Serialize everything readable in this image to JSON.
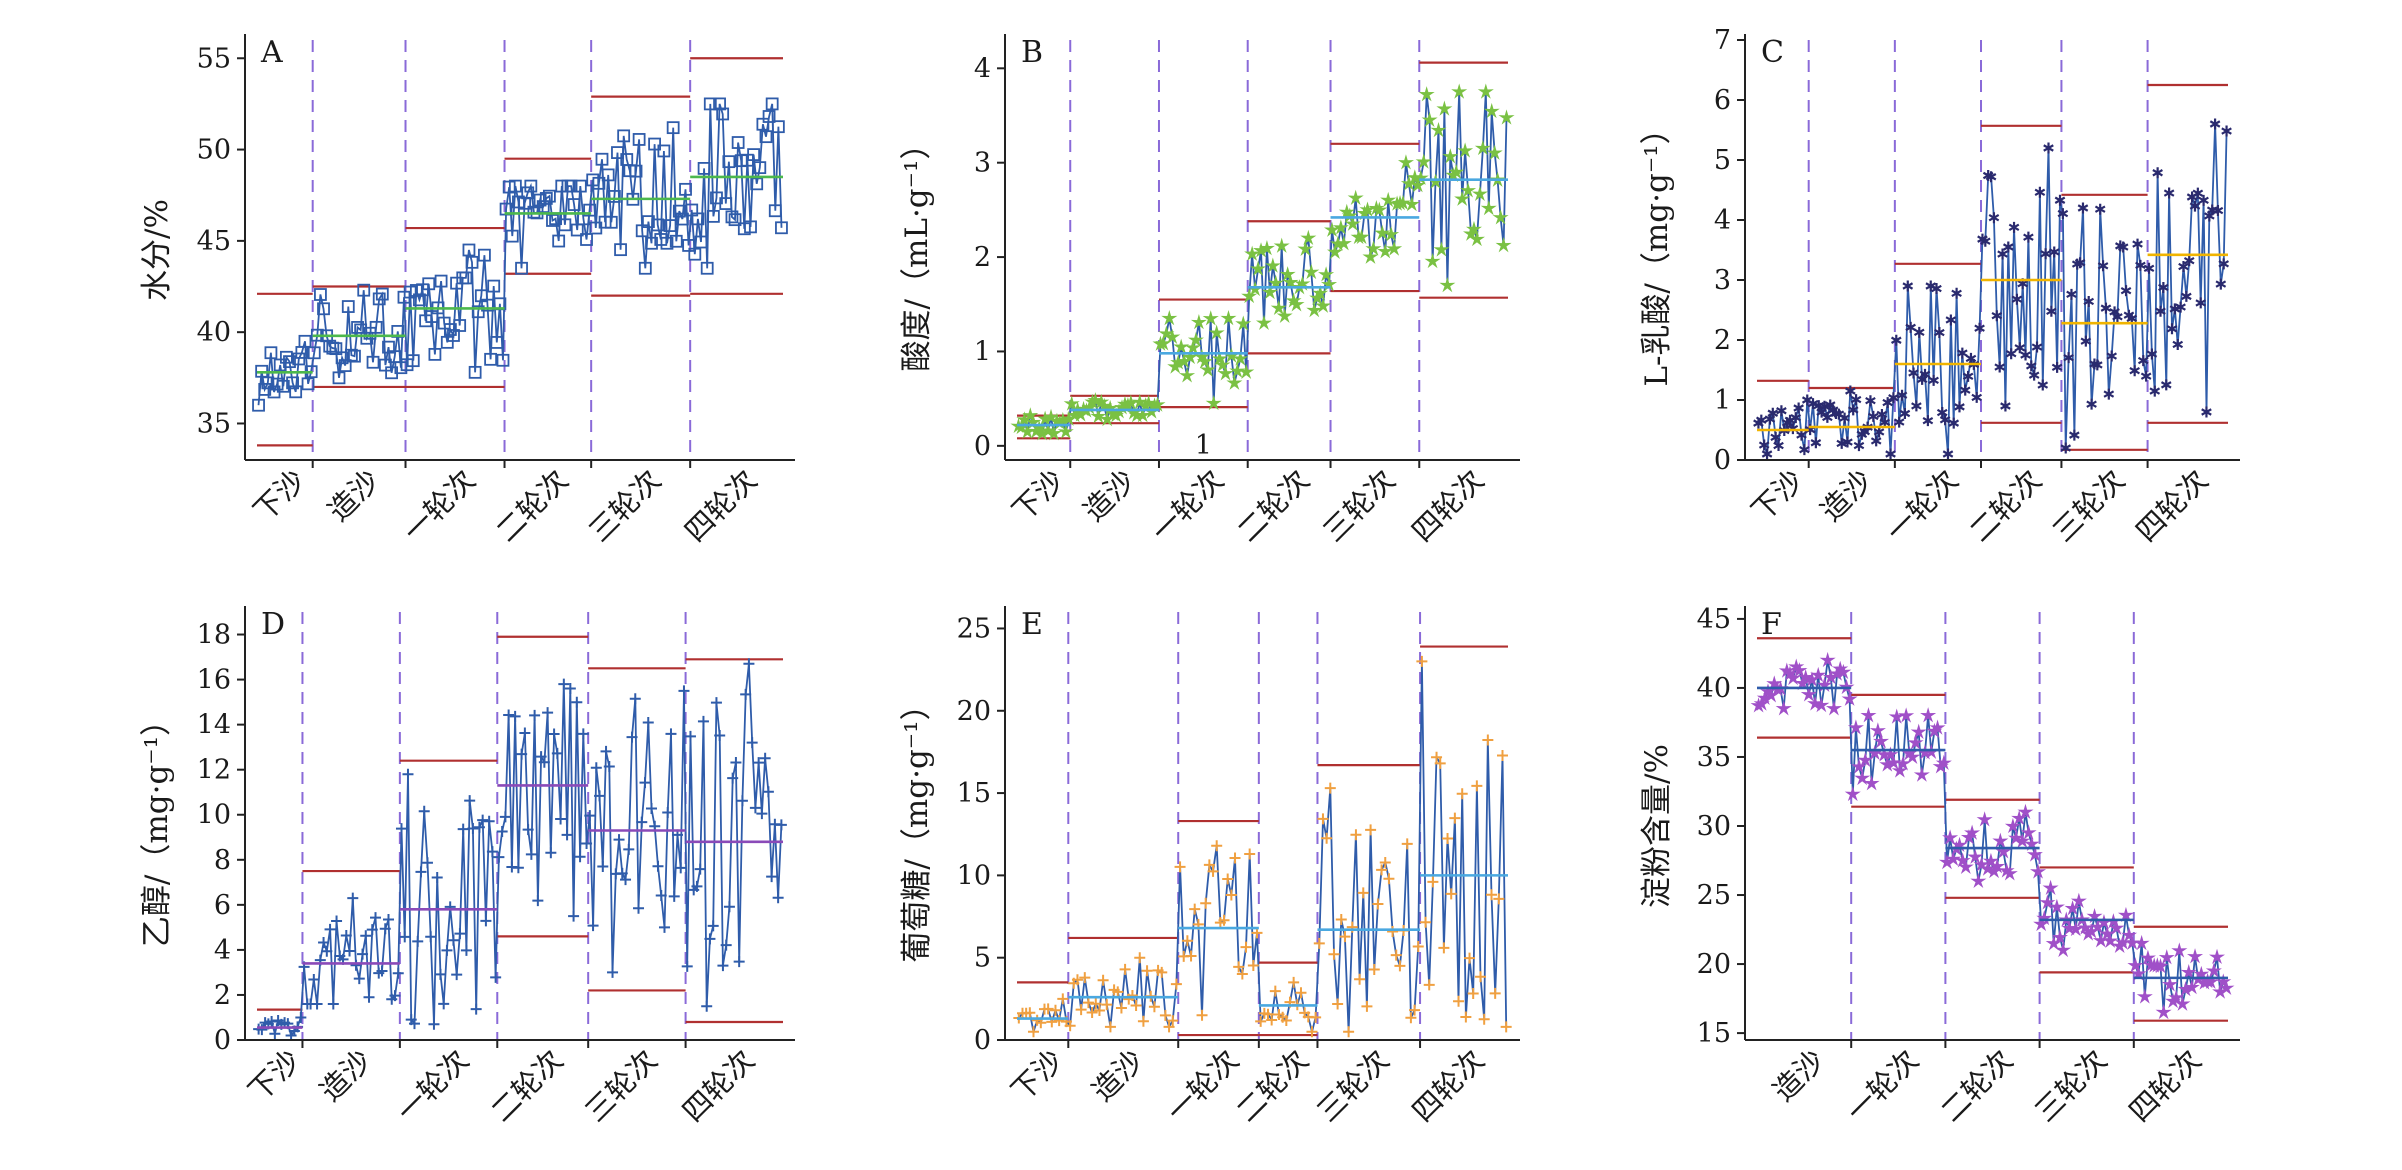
{
  "chart_data": [
    {
      "panel": "A",
      "type": "line",
      "ylabel": "水分/%",
      "ylim": [
        33,
        56
      ],
      "yticks": [
        35,
        40,
        45,
        50,
        55
      ],
      "categories": [
        "下沙",
        "造沙",
        "一轮次",
        "二轮次",
        "三轮次",
        "四轮次"
      ],
      "segments": [
        {
          "category": "下沙",
          "n": 18,
          "mean": 37.8,
          "low": 36.0,
          "high": 39.5,
          "ucl": 42.1,
          "lcl": 33.8
        },
        {
          "category": "造沙",
          "n": 30,
          "mean": 39.8,
          "low": 37.5,
          "high": 42.3,
          "ucl": 42.5,
          "lcl": 37.0
        },
        {
          "category": "一轮次",
          "n": 32,
          "mean": 41.3,
          "low": 37.8,
          "high": 44.5,
          "ucl": 45.7,
          "lcl": 37.0
        },
        {
          "category": "二轮次",
          "n": 28,
          "mean": 46.5,
          "low": 43.5,
          "high": 48.0,
          "ucl": 49.5,
          "lcl": 43.2
        },
        {
          "category": "三轮次",
          "n": 32,
          "mean": 47.3,
          "low": 43.5,
          "high": 51.2,
          "ucl": 52.9,
          "lcl": 42.0
        },
        {
          "category": "四轮次",
          "n": 30,
          "mean": 48.5,
          "low": 43.5,
          "high": 52.5,
          "ucl": 55.0,
          "lcl": 42.1
        }
      ],
      "colors": {
        "line": "#2f5caa",
        "marker": "#2f5caa",
        "mean": "#4cb84c",
        "limit": "#b03030",
        "divider": "#8a6ad8"
      },
      "marker": "square"
    },
    {
      "panel": "B",
      "type": "line",
      "ylabel": "酸度/（mL·g⁻¹）",
      "ylim": [
        -0.15,
        4.3
      ],
      "yticks": [
        0,
        1,
        2,
        3,
        4
      ],
      "categories": [
        "下沙",
        "造沙",
        "一轮次",
        "二轮次",
        "三轮次",
        "四轮次"
      ],
      "annotation": "1",
      "segments": [
        {
          "category": "下沙",
          "n": 18,
          "mean": 0.22,
          "low": 0.13,
          "high": 0.32,
          "ucl": 0.32,
          "lcl": 0.08
        },
        {
          "category": "造沙",
          "n": 30,
          "mean": 0.38,
          "low": 0.28,
          "high": 0.48,
          "ucl": 0.53,
          "lcl": 0.24
        },
        {
          "category": "一轮次",
          "n": 30,
          "mean": 0.98,
          "low": 0.45,
          "high": 1.35,
          "ucl": 1.55,
          "lcl": 0.41
        },
        {
          "category": "二轮次",
          "n": 28,
          "mean": 1.68,
          "low": 1.3,
          "high": 2.2,
          "ucl": 2.38,
          "lcl": 0.98
        },
        {
          "category": "三轮次",
          "n": 30,
          "mean": 2.42,
          "low": 2.0,
          "high": 3.0,
          "ucl": 3.2,
          "lcl": 1.64
        },
        {
          "category": "四轮次",
          "n": 30,
          "mean": 2.82,
          "low": 1.7,
          "high": 3.75,
          "ucl": 4.06,
          "lcl": 1.57
        }
      ],
      "colors": {
        "line": "#2f5caa",
        "marker": "#7ac143",
        "mean": "#4aa8e0",
        "limit": "#b03030",
        "divider": "#8a6ad8"
      },
      "marker": "star"
    },
    {
      "panel": "C",
      "type": "line",
      "ylabel": "L-乳酸/（mg·g⁻¹）",
      "ylim": [
        0,
        7
      ],
      "yticks": [
        0,
        1,
        2,
        3,
        4,
        5,
        6,
        7
      ],
      "categories": [
        "下沙",
        "造沙",
        "一轮次",
        "二轮次",
        "三轮次",
        "四轮次"
      ],
      "segments": [
        {
          "category": "下沙",
          "n": 18,
          "mean": 0.5,
          "low": 0.1,
          "high": 1.0,
          "ucl": 1.32,
          "lcl": null
        },
        {
          "category": "造沙",
          "n": 30,
          "mean": 0.55,
          "low": 0.1,
          "high": 1.15,
          "ucl": 1.2,
          "lcl": null
        },
        {
          "category": "一轮次",
          "n": 30,
          "mean": 1.6,
          "low": 0.1,
          "high": 2.9,
          "ucl": 3.27,
          "lcl": null
        },
        {
          "category": "二轮次",
          "n": 28,
          "mean": 3.0,
          "low": 0.9,
          "high": 5.2,
          "ucl": 5.57,
          "lcl": 0.62
        },
        {
          "category": "三轮次",
          "n": 30,
          "mean": 2.28,
          "low": 0.2,
          "high": 4.2,
          "ucl": 4.42,
          "lcl": 0.17
        },
        {
          "category": "四轮次",
          "n": 28,
          "mean": 3.42,
          "low": 0.8,
          "high": 5.6,
          "ucl": 6.25,
          "lcl": 0.62
        }
      ],
      "colors": {
        "line": "#2f5caa",
        "marker": "#2a2a6e",
        "mean": "#f0b400",
        "limit": "#b03030",
        "divider": "#8a6ad8"
      },
      "marker": "asterisk"
    },
    {
      "panel": "D",
      "type": "line",
      "ylabel": "乙醇/（mg·g⁻¹）",
      "ylim": [
        0,
        19
      ],
      "yticks": [
        0,
        2,
        4,
        6,
        8,
        10,
        12,
        14,
        16,
        18
      ],
      "categories": [
        "下沙",
        "造沙",
        "一轮次",
        "二轮次",
        "三轮次",
        "四轮次"
      ],
      "segments": [
        {
          "category": "下沙",
          "n": 14,
          "mean": 0.55,
          "low": 0.2,
          "high": 1.0,
          "ucl": 1.35,
          "lcl": null
        },
        {
          "category": "造沙",
          "n": 30,
          "mean": 3.4,
          "low": 1.6,
          "high": 6.3,
          "ucl": 7.5,
          "lcl": null
        },
        {
          "category": "一轮次",
          "n": 30,
          "mean": 5.8,
          "low": 0.7,
          "high": 11.8,
          "ucl": 12.4,
          "lcl": null
        },
        {
          "category": "二轮次",
          "n": 28,
          "mean": 11.3,
          "low": 5.5,
          "high": 15.8,
          "ucl": 17.9,
          "lcl": 4.6
        },
        {
          "category": "三轮次",
          "n": 30,
          "mean": 9.3,
          "low": 3.0,
          "high": 15.5,
          "ucl": 16.5,
          "lcl": 2.2
        },
        {
          "category": "四轮次",
          "n": 30,
          "mean": 8.8,
          "low": 1.5,
          "high": 16.7,
          "ucl": 16.9,
          "lcl": 0.8
        }
      ],
      "colors": {
        "line": "#2f5caa",
        "marker": "#2f5caa",
        "mean": "#8a4ab8",
        "limit": "#b03030",
        "divider": "#8a6ad8"
      },
      "marker": "plus"
    },
    {
      "panel": "E",
      "type": "line",
      "ylabel": "葡萄糖/（mg·g⁻¹）",
      "ylim": [
        0,
        26
      ],
      "yticks": [
        0,
        5,
        10,
        15,
        20,
        25
      ],
      "categories": [
        "下沙",
        "造沙",
        "一轮次",
        "二轮次",
        "三轮次",
        "四轮次"
      ],
      "segments": [
        {
          "category": "下沙",
          "n": 14,
          "mean": 1.3,
          "low": 0.5,
          "high": 2.5,
          "ucl": 3.5,
          "lcl": null
        },
        {
          "category": "造沙",
          "n": 30,
          "mean": 2.6,
          "low": 0.8,
          "high": 5.0,
          "ucl": 6.2,
          "lcl": null
        },
        {
          "category": "一轮次",
          "n": 22,
          "mean": 6.8,
          "low": 1.5,
          "high": 11.8,
          "ucl": 13.3,
          "lcl": 0.3
        },
        {
          "category": "二轮次",
          "n": 16,
          "mean": 2.1,
          "low": 0.5,
          "high": 3.5,
          "ucl": 4.7,
          "lcl": 0.3
        },
        {
          "category": "三轮次",
          "n": 28,
          "mean": 6.7,
          "low": 0.5,
          "high": 15.3,
          "ucl": 16.7,
          "lcl": null
        },
        {
          "category": "四轮次",
          "n": 24,
          "mean": 10.0,
          "low": 0.8,
          "high": 23.0,
          "ucl": 23.9,
          "lcl": null
        }
      ],
      "colors": {
        "line": "#2f5caa",
        "marker": "#f0a040",
        "mean": "#4aa8e0",
        "limit": "#b03030",
        "divider": "#8a6ad8"
      },
      "marker": "plus"
    },
    {
      "panel": "F",
      "type": "line",
      "ylabel": "淀粉含量/%",
      "ylim": [
        14.5,
        45.5
      ],
      "yticks": [
        15,
        20,
        25,
        30,
        35,
        40,
        45
      ],
      "categories": [
        "造沙",
        "一轮次",
        "二轮次",
        "三轮次",
        "四轮次"
      ],
      "segments": [
        {
          "category": "造沙",
          "n": 30,
          "mean": 40.0,
          "low": 38.5,
          "high": 42.0,
          "ucl": 43.6,
          "lcl": 36.4
        },
        {
          "category": "一轮次",
          "n": 30,
          "mean": 35.5,
          "low": 32.3,
          "high": 38.0,
          "ucl": 39.5,
          "lcl": 31.4
        },
        {
          "category": "二轮次",
          "n": 30,
          "mean": 28.4,
          "low": 26.0,
          "high": 31.0,
          "ucl": 31.9,
          "lcl": 24.8
        },
        {
          "category": "三轮次",
          "n": 30,
          "mean": 23.2,
          "low": 21.0,
          "high": 25.5,
          "ucl": 27.0,
          "lcl": 19.4
        },
        {
          "category": "四轮次",
          "n": 30,
          "mean": 19.0,
          "low": 16.5,
          "high": 21.5,
          "ucl": 22.7,
          "lcl": 15.9
        }
      ],
      "colors": {
        "line": "#2f5caa",
        "marker": "#a050c8",
        "mean": "#2f5caa",
        "limit": "#b03030",
        "divider": "#8a6ad8"
      },
      "marker": "star"
    }
  ]
}
